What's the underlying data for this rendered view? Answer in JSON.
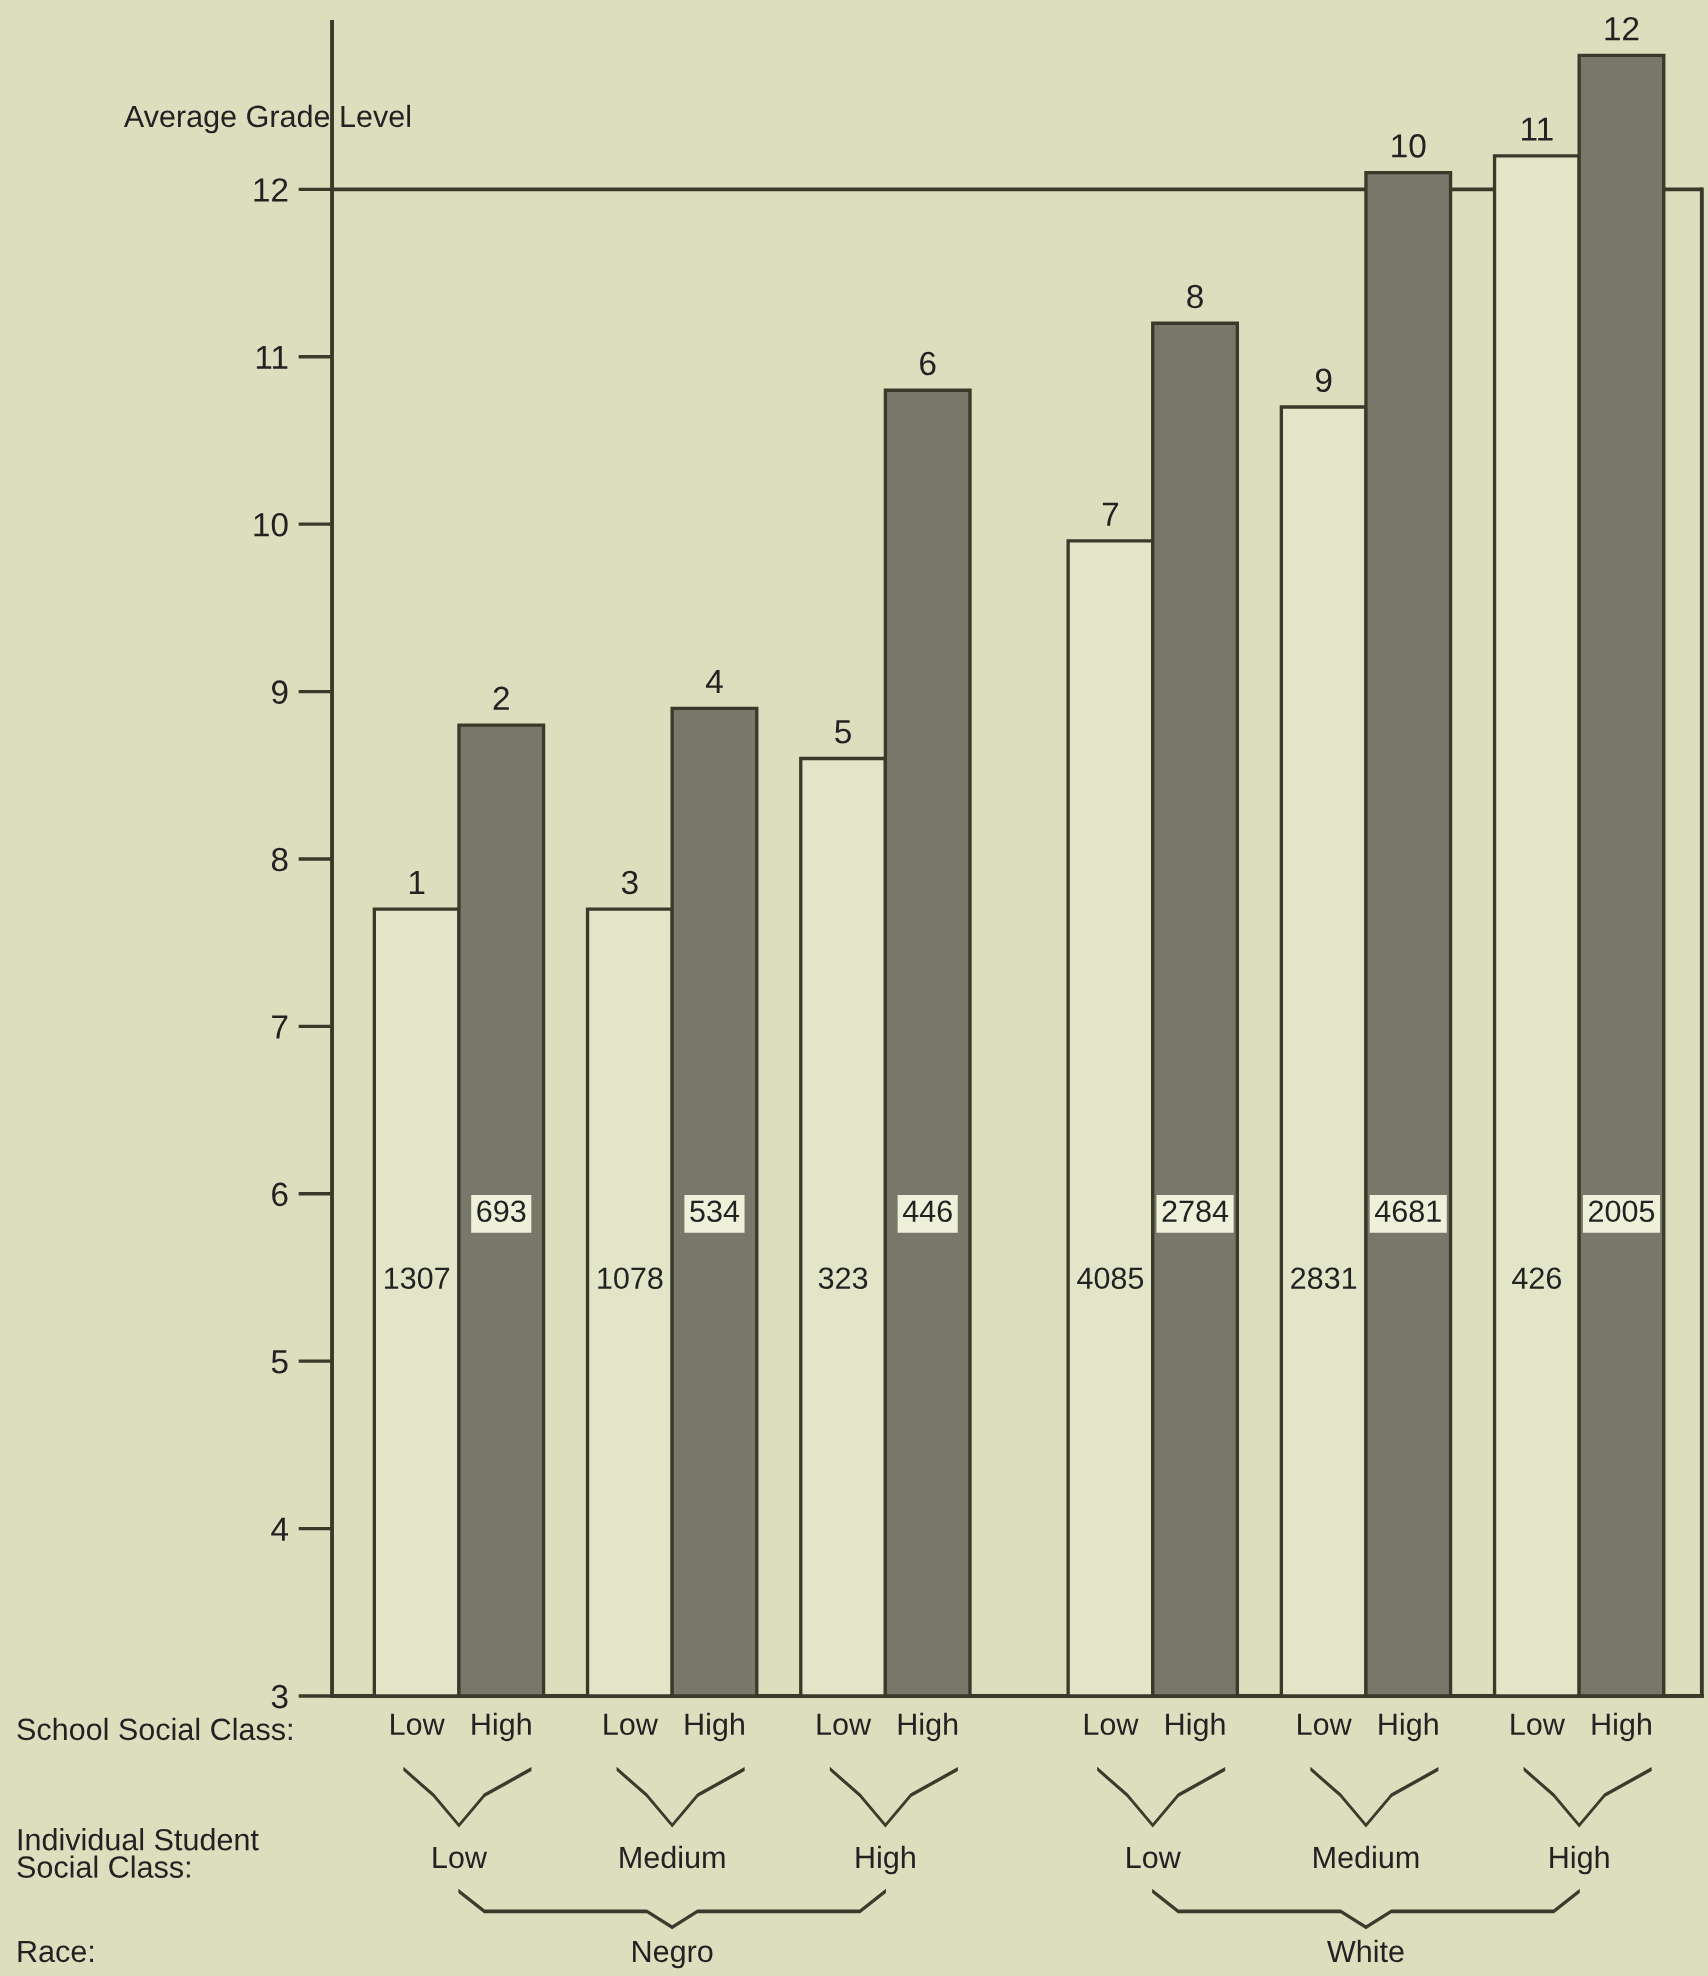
{
  "chart_data": {
    "type": "bar",
    "ylabel": "Average Grade Level",
    "categories": [
      "Low",
      "High",
      "Low",
      "High",
      "Low",
      "High",
      "Low",
      "High",
      "Low",
      "High",
      "Low",
      "High"
    ],
    "values": [
      7.7,
      8.8,
      7.7,
      8.9,
      8.6,
      10.8,
      9.9,
      11.2,
      10.7,
      12.1,
      12.2,
      12.8
    ],
    "colors": [
      "#e3e5c8",
      "#77786a",
      "#e3e5c8",
      "#77786a",
      "#e3e5c8",
      "#77786a",
      "#e3e5c8",
      "#77786a",
      "#e3e5c8",
      "#77786a",
      "#e3e5c8",
      "#77786a"
    ],
    "ylim": [
      3,
      13
    ],
    "yticks": [
      3,
      4,
      5,
      6,
      7,
      8,
      9,
      10,
      11,
      12
    ],
    "grid": false,
    "legend": false,
    "ref_lines": [
      {
        "axis": "y",
        "value": 12,
        "label": null,
        "color": "#3a3a2a"
      }
    ],
    "annotations": [
      {
        "text": "1",
        "y": 7.7
      },
      {
        "text": "2",
        "y": 8.8
      },
      {
        "text": "3",
        "y": 7.7
      },
      {
        "text": "4",
        "y": 8.9
      },
      {
        "text": "5",
        "y": 8.6
      },
      {
        "text": "6",
        "y": 10.8
      },
      {
        "text": "7",
        "y": 9.9
      },
      {
        "text": "8",
        "y": 11.2
      },
      {
        "text": "9",
        "y": 10.7
      },
      {
        "text": "10",
        "y": 12.1
      },
      {
        "text": "11",
        "y": 12.2
      },
      {
        "text": "12",
        "y": 12.8
      },
      "1307",
      "693",
      "1078",
      "534",
      "323",
      "446",
      "4085",
      "2784",
      "2831",
      "4681",
      "426",
      "2005",
      "School Social Class:",
      "Individual Student\nSocial Class:",
      "Race:",
      "Low",
      "Medium",
      "High",
      "Low",
      "Medium",
      "High",
      "Negro",
      "White"
    ]
  }
}
